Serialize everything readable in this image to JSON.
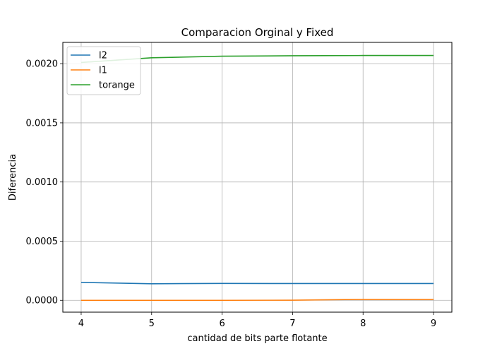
{
  "chart_data": {
    "type": "line",
    "title": "Comparacion Orginal y Fixed",
    "xlabel": "cantidad de bits parte flotante",
    "ylabel": "Diferencia",
    "x": [
      4,
      5,
      6,
      7,
      8,
      9
    ],
    "x_ticks": [
      "4",
      "5",
      "6",
      "7",
      "8",
      "9"
    ],
    "y_ticks": [
      "0.0000",
      "0.0005",
      "0.0010",
      "0.0015",
      "0.0020"
    ],
    "xlim": [
      3.74,
      9.26
    ],
    "ylim": [
      -0.0001,
      0.00218
    ],
    "grid": true,
    "legend_position": "top-left",
    "series": [
      {
        "name": "l2",
        "color": "#1f77b4",
        "values": [
          0.000152,
          0.00014,
          0.000143,
          0.000142,
          0.000142,
          0.000142
        ]
      },
      {
        "name": "l1",
        "color": "#ff7f0e",
        "values": [
          0.0,
          0.0,
          0.0,
          1e-06,
          8e-06,
          8e-06
        ]
      },
      {
        "name": "torange",
        "color": "#2ca02c",
        "values": [
          0.00201,
          0.00205,
          0.002063,
          0.002067,
          0.002069,
          0.002069
        ]
      }
    ]
  }
}
